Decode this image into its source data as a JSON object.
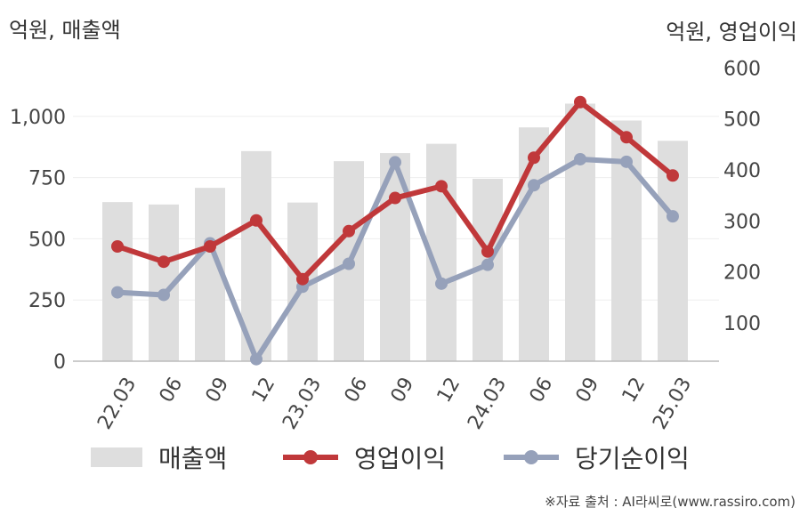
{
  "units": {
    "left": "억원, 매출액",
    "right": "억원, 영업이익"
  },
  "legend": {
    "sales": "매출액",
    "operating": "영업이익",
    "net": "당기순이익"
  },
  "source": "※자료 출처 : AI라씨로(www.rassiro.com)",
  "colors": {
    "bar": "#dedede",
    "operating": "#c0383a",
    "net": "#96a1ba",
    "axis": "#bbbbbb",
    "grid": "#eeeeee"
  },
  "chart_data": {
    "type": "bar",
    "categories": [
      "22.03",
      "06",
      "09",
      "12",
      "23.03",
      "06",
      "09",
      "12",
      "24.03",
      "06",
      "09",
      "12",
      "25.03"
    ],
    "left_axis": {
      "ticks": [
        0,
        250,
        500,
        750,
        1000
      ],
      "tick_labels": [
        "0",
        "250",
        "500",
        "750",
        "1,000"
      ],
      "ylim": [
        0,
        1250
      ]
    },
    "right_axis": {
      "ticks": [
        100,
        200,
        300,
        400,
        500,
        600
      ],
      "tick_labels": [
        "100",
        "200",
        "300",
        "400",
        "500",
        "600"
      ],
      "ylim": [
        25,
        625
      ]
    },
    "series": [
      {
        "name": "매출액",
        "kind": "bar",
        "axis": "left",
        "values": [
          650,
          640,
          708,
          858,
          648,
          817,
          850,
          888,
          745,
          955,
          1052,
          983,
          900
        ]
      },
      {
        "name": "영업이익",
        "kind": "line",
        "axis": "right",
        "values": [
          250,
          220,
          250,
          301,
          186,
          280,
          345,
          368,
          240,
          424,
          533,
          464,
          389
        ]
      },
      {
        "name": "당기순이익",
        "kind": "line",
        "axis": "right",
        "values": [
          160,
          155,
          256,
          29,
          171,
          216,
          415,
          177,
          214,
          370,
          421,
          416,
          309
        ]
      }
    ],
    "grid": true,
    "legend_position": "bottom"
  }
}
